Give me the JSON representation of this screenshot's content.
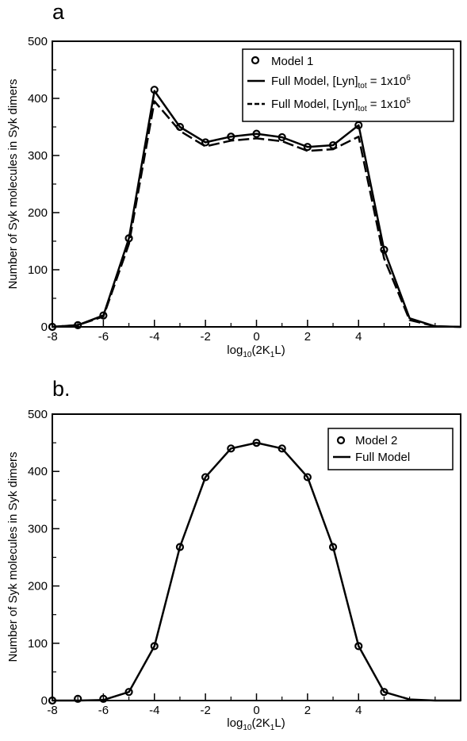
{
  "chart_data": [
    {
      "panel": "a",
      "type": "line",
      "xlabel": "log10(2K1L)",
      "ylabel": "Number of Syk molecules in Syk dimers",
      "xlim": [
        -8,
        8
      ],
      "ylim": [
        0,
        500
      ],
      "x_ticks": [
        -8,
        -6,
        -4,
        -2,
        0,
        2,
        4
      ],
      "y_ticks": [
        0,
        100,
        200,
        300,
        400,
        500
      ],
      "legend_position": "top-right",
      "series": [
        {
          "name": "Model 1",
          "style": "markers",
          "x": [
            -8,
            -7,
            -6,
            -5,
            -4,
            -3,
            -2,
            -1,
            0,
            1,
            2,
            3,
            4,
            5
          ],
          "y": [
            0,
            3,
            20,
            155,
            415,
            350,
            323,
            333,
            338,
            332,
            315,
            318,
            353,
            135
          ]
        },
        {
          "name": "Full Model, [Lyn]tot = 1x10^6",
          "style": "solid",
          "x": [
            -8,
            -7,
            -6,
            -5,
            -4,
            -3,
            -2,
            -1,
            0,
            1,
            2,
            3,
            4,
            5,
            6,
            7,
            8
          ],
          "y": [
            0,
            3,
            20,
            155,
            413,
            350,
            323,
            333,
            338,
            332,
            315,
            318,
            353,
            135,
            15,
            1,
            0
          ]
        },
        {
          "name": "Full Model, [Lyn]tot = 1x10^5",
          "style": "dashed",
          "x": [
            -8,
            -7,
            -6,
            -5,
            -4,
            -3,
            -2,
            -1,
            0,
            1,
            2,
            3,
            4,
            5,
            6,
            7,
            8
          ],
          "y": [
            0,
            3,
            18,
            145,
            395,
            343,
            316,
            326,
            330,
            325,
            308,
            311,
            333,
            120,
            12,
            1,
            0
          ]
        }
      ]
    },
    {
      "panel": "b.",
      "type": "line",
      "xlabel": "log10(2K1L)",
      "ylabel": "Number of Syk molecules in Syk dimers",
      "xlim": [
        -8,
        8
      ],
      "ylim": [
        0,
        500
      ],
      "x_ticks": [
        -8,
        -6,
        -4,
        -2,
        0,
        2,
        4
      ],
      "y_ticks": [
        0,
        100,
        200,
        300,
        400,
        500
      ],
      "legend_position": "top-right",
      "series": [
        {
          "name": "Model 2",
          "style": "markers",
          "x": [
            -8,
            -7,
            -6,
            -5,
            -4,
            -3,
            -2,
            -1,
            0,
            1,
            2,
            3,
            4,
            5
          ],
          "y": [
            0,
            3,
            3,
            15,
            95,
            268,
            390,
            440,
            450,
            440,
            390,
            268,
            95,
            15
          ]
        },
        {
          "name": "Full Model",
          "style": "solid",
          "x": [
            -8,
            -7,
            -6,
            -5,
            -4,
            -3,
            -2,
            -1,
            0,
            1,
            2,
            3,
            4,
            5,
            6,
            7,
            8
          ],
          "y": [
            0,
            0,
            1,
            15,
            95,
            268,
            390,
            440,
            450,
            440,
            390,
            268,
            95,
            15,
            2,
            0,
            0
          ]
        }
      ]
    }
  ],
  "text": {
    "a_letter": "a",
    "b_letter": "b.",
    "xlabel_main": "log",
    "xlabel_sub": "10",
    "xlabel_mid": "(2K",
    "xlabel_sub2": "1",
    "xlabel_end": "L)",
    "ylabel": "Number of Syk molecules in Syk dimers",
    "legend_a": {
      "model1": "Model 1",
      "full_prefix": "Full Model, [Lyn]",
      "tot": "tot",
      "eq": " = 1x10",
      "exp6": "6",
      "exp5": "5"
    },
    "legend_b": {
      "model2": "Model 2",
      "full": "Full Model"
    }
  }
}
